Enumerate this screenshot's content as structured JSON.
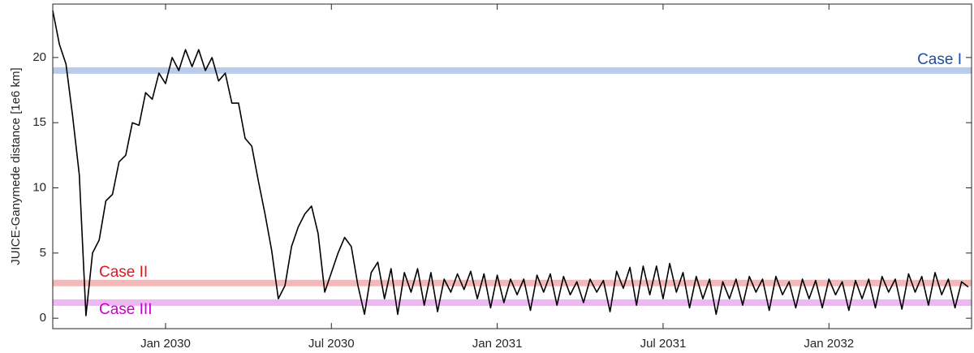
{
  "chart_data": {
    "type": "line",
    "y_label": "JUICE-Ganymede distance [1e6 km]",
    "color": "#000000",
    "x": [
      2029.66,
      2029.68,
      2029.7,
      2029.72,
      2029.74,
      2029.76,
      2029.78,
      2029.8,
      2029.82,
      2029.84,
      2029.86,
      2029.88,
      2029.9,
      2029.92,
      2029.94,
      2029.96,
      2029.98,
      2030.0,
      2030.02,
      2030.04,
      2030.06,
      2030.08,
      2030.1,
      2030.12,
      2030.14,
      2030.16,
      2030.18,
      2030.2,
      2030.22,
      2030.24,
      2030.26,
      2030.28,
      2030.3,
      2030.32,
      2030.34,
      2030.36,
      2030.38,
      2030.4,
      2030.42,
      2030.44,
      2030.46,
      2030.48,
      2030.5,
      2030.52,
      2030.54,
      2030.56,
      2030.58,
      2030.6,
      2030.62,
      2030.64,
      2030.66,
      2030.68,
      2030.7,
      2030.72,
      2030.74,
      2030.76,
      2030.78,
      2030.8,
      2030.82,
      2030.84,
      2030.86,
      2030.88,
      2030.9,
      2030.92,
      2030.94,
      2030.96,
      2030.98,
      2031.0,
      2031.02,
      2031.04,
      2031.06,
      2031.08,
      2031.1,
      2031.12,
      2031.14,
      2031.16,
      2031.18,
      2031.2,
      2031.22,
      2031.24,
      2031.26,
      2031.28,
      2031.3,
      2031.32,
      2031.34,
      2031.36,
      2031.38,
      2031.4,
      2031.42,
      2031.44,
      2031.46,
      2031.48,
      2031.5,
      2031.52,
      2031.54,
      2031.56,
      2031.58,
      2031.6,
      2031.62,
      2031.64,
      2031.66,
      2031.68,
      2031.7,
      2031.72,
      2031.74,
      2031.76,
      2031.78,
      2031.8,
      2031.82,
      2031.84,
      2031.86,
      2031.88,
      2031.9,
      2031.92,
      2031.94,
      2031.96,
      2031.98,
      2032.0,
      2032.02,
      2032.04,
      2032.06,
      2032.08,
      2032.1,
      2032.12,
      2032.14,
      2032.16,
      2032.18,
      2032.2,
      2032.22,
      2032.24,
      2032.26,
      2032.28,
      2032.3,
      2032.32,
      2032.34,
      2032.36,
      2032.38,
      2032.4,
      2032.42
    ],
    "values": [
      23.6,
      21.0,
      19.5,
      15.5,
      11.0,
      0.2,
      5.0,
      6.0,
      9.0,
      9.5,
      12.0,
      12.5,
      15.0,
      14.8,
      17.3,
      16.8,
      18.8,
      18.0,
      20.0,
      19.0,
      20.6,
      19.3,
      20.6,
      19.0,
      20.0,
      18.2,
      18.8,
      16.5,
      16.5,
      13.8,
      13.2,
      10.5,
      8.0,
      5.2,
      1.5,
      2.5,
      5.5,
      7.0,
      8.0,
      8.6,
      6.5,
      2.0,
      3.5,
      5.0,
      6.2,
      5.5,
      2.5,
      0.3,
      3.5,
      4.3,
      1.5,
      3.8,
      0.3,
      3.5,
      2.0,
      3.8,
      1.0,
      3.5,
      0.5,
      3.0,
      2.0,
      3.4,
      2.2,
      3.6,
      1.5,
      3.4,
      0.8,
      3.3,
      1.2,
      3.0,
      1.8,
      3.0,
      0.6,
      3.3,
      2.0,
      3.4,
      1.0,
      3.2,
      1.8,
      2.8,
      1.2,
      3.0,
      2.0,
      2.9,
      0.5,
      3.6,
      2.3,
      3.9,
      1.0,
      4.0,
      1.8,
      4.0,
      1.5,
      4.2,
      2.0,
      3.5,
      0.8,
      3.2,
      1.5,
      3.0,
      0.3,
      2.8,
      1.5,
      3.0,
      1.0,
      3.2,
      2.0,
      3.0,
      0.6,
      3.2,
      1.8,
      2.8,
      0.8,
      3.0,
      1.5,
      2.9,
      0.8,
      3.0,
      1.8,
      2.8,
      0.6,
      2.9,
      1.5,
      3.0,
      0.8,
      3.2,
      2.0,
      3.0,
      0.7,
      3.4,
      2.0,
      3.2,
      1.0,
      3.5,
      1.8,
      3.0,
      0.8,
      2.8,
      2.4
    ],
    "xlim": [
      2029.66,
      2032.43
    ],
    "xticks": [
      {
        "value": 2030.0,
        "label": "Jan 2030"
      },
      {
        "value": 2030.5,
        "label": "Jul 2030"
      },
      {
        "value": 2031.0,
        "label": "Jan 2031"
      },
      {
        "value": 2031.5,
        "label": "Jul 2031"
      },
      {
        "value": 2032.0,
        "label": "Jan 2032"
      }
    ],
    "ylim": [
      -0.8,
      24.1
    ],
    "yticks": [
      0,
      5,
      10,
      15,
      20
    ],
    "grid": false,
    "reference_lines": [
      {
        "label": "Case I",
        "value": 19,
        "color": "#b8cbe9",
        "label_color": "#1f4ea1",
        "label_side": "above-right"
      },
      {
        "label": "Case II",
        "value": 2.7,
        "color": "#f5b8b8",
        "label_color": "#e8141e",
        "label_side": "above-left"
      },
      {
        "label": "Case III",
        "value": 1.2,
        "color": "#ebb8ef",
        "label_color": "#cc00cc",
        "label_side": "below-left"
      }
    ]
  }
}
